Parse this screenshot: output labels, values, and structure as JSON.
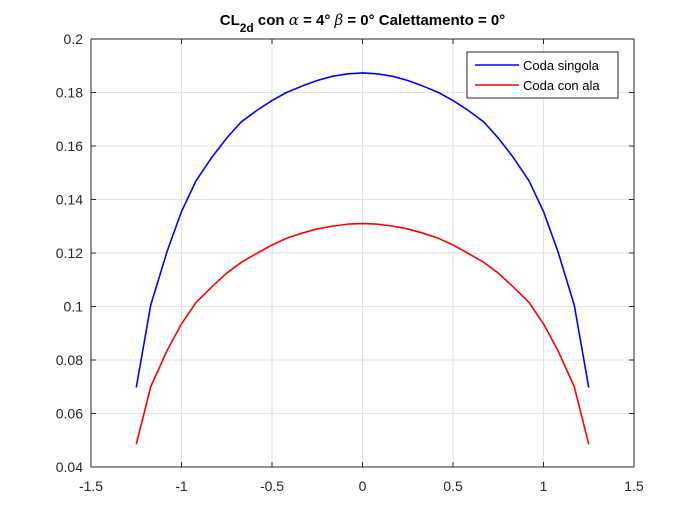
{
  "chart_data": {
    "type": "line",
    "title": {
      "main": "CL",
      "subscript": "2d",
      "middle": " con ",
      "alpha_symbol": "α",
      "after_alpha": " = 4° ",
      "beta_symbol": "β",
      "after_beta": " = 0° Calettamento = 0°"
    },
    "xlabel": "",
    "ylabel": "",
    "xlim": [
      -1.5,
      1.5
    ],
    "ylim": [
      0.04,
      0.2
    ],
    "xticks": [
      -1.5,
      -1,
      -0.5,
      0,
      0.5,
      1,
      1.5
    ],
    "yticks": [
      0.04,
      0.06,
      0.08,
      0.1,
      0.12,
      0.14,
      0.16,
      0.18,
      0.2
    ],
    "grid": true,
    "legend_position": "top-right",
    "series": [
      {
        "name": "Coda singola",
        "color": "#0000ff",
        "x": [
          -1.25,
          -1.17,
          -1.08,
          -1.0,
          -0.92,
          -0.83,
          -0.75,
          -0.67,
          -0.58,
          -0.5,
          -0.42,
          -0.33,
          -0.25,
          -0.17,
          -0.08,
          0.0,
          0.08,
          0.17,
          0.25,
          0.33,
          0.42,
          0.5,
          0.58,
          0.67,
          0.75,
          0.83,
          0.92,
          1.0,
          1.08,
          1.17,
          1.25
        ],
        "y": [
          0.0697,
          0.1005,
          0.1205,
          0.1355,
          0.147,
          0.156,
          0.163,
          0.169,
          0.1735,
          0.177,
          0.18,
          0.1825,
          0.1845,
          0.186,
          0.187,
          0.1873,
          0.187,
          0.186,
          0.1845,
          0.1825,
          0.18,
          0.177,
          0.1735,
          0.169,
          0.163,
          0.156,
          0.147,
          0.1355,
          0.1205,
          0.1005,
          0.0697
        ]
      },
      {
        "name": "Coda con ala",
        "color": "#ff0000",
        "x": [
          -1.25,
          -1.17,
          -1.08,
          -1.0,
          -0.92,
          -0.83,
          -0.75,
          -0.67,
          -0.58,
          -0.5,
          -0.42,
          -0.33,
          -0.25,
          -0.17,
          -0.08,
          0.0,
          0.08,
          0.17,
          0.25,
          0.33,
          0.42,
          0.5,
          0.58,
          0.67,
          0.75,
          0.83,
          0.92,
          1.0,
          1.08,
          1.17,
          1.25
        ],
        "y": [
          0.0485,
          0.07,
          0.0835,
          0.0935,
          0.1015,
          0.1075,
          0.1125,
          0.1165,
          0.12,
          0.123,
          0.1255,
          0.1275,
          0.129,
          0.13,
          0.1308,
          0.131,
          0.1308,
          0.13,
          0.129,
          0.1275,
          0.1255,
          0.123,
          0.12,
          0.1165,
          0.1125,
          0.1075,
          0.1015,
          0.0935,
          0.0835,
          0.07,
          0.0485
        ]
      }
    ]
  }
}
